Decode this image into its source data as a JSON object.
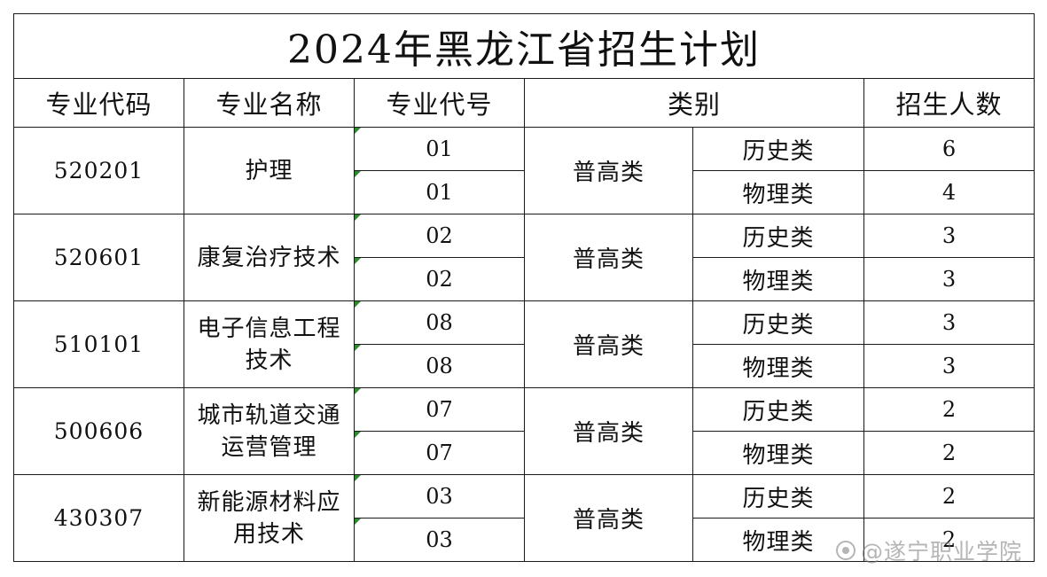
{
  "title": "2024年黑龙江省招生计划",
  "headers": {
    "major_code": "专业代码",
    "major_name": "专业名称",
    "major_no": "专业代号",
    "category": "类别",
    "enrollment": "招生人数"
  },
  "majors": [
    {
      "code": "520201",
      "name_lines": [
        "护理",
        ""
      ],
      "category": "普高类",
      "rows": [
        {
          "no": "01",
          "subject": "历史类",
          "count": "6"
        },
        {
          "no": "01",
          "subject": "物理类",
          "count": "4"
        }
      ]
    },
    {
      "code": "520601",
      "name_lines": [
        "康复治疗技术",
        ""
      ],
      "category": "普高类",
      "rows": [
        {
          "no": "02",
          "subject": "历史类",
          "count": "3"
        },
        {
          "no": "02",
          "subject": "物理类",
          "count": "3"
        }
      ]
    },
    {
      "code": "510101",
      "name_lines": [
        "电子信息工程",
        "技术"
      ],
      "category": "普高类",
      "rows": [
        {
          "no": "08",
          "subject": "历史类",
          "count": "3"
        },
        {
          "no": "08",
          "subject": "物理类",
          "count": "3"
        }
      ]
    },
    {
      "code": "500606",
      "name_lines": [
        "城市轨道交通",
        "运营管理"
      ],
      "category": "普高类",
      "rows": [
        {
          "no": "07",
          "subject": "历史类",
          "count": "2"
        },
        {
          "no": "07",
          "subject": "物理类",
          "count": "2"
        }
      ]
    },
    {
      "code": "430307",
      "name_lines": [
        "新能源材料应",
        "用技术"
      ],
      "category": "普高类",
      "rows": [
        {
          "no": "03",
          "subject": "历史类",
          "count": "2"
        },
        {
          "no": "03",
          "subject": "物理类",
          "count": "2"
        }
      ]
    }
  ],
  "watermark": "@遂宁职业学院",
  "colors": {
    "border": "#1a1a1a",
    "marker": "#2e8b2e",
    "watermark": "#787878"
  }
}
